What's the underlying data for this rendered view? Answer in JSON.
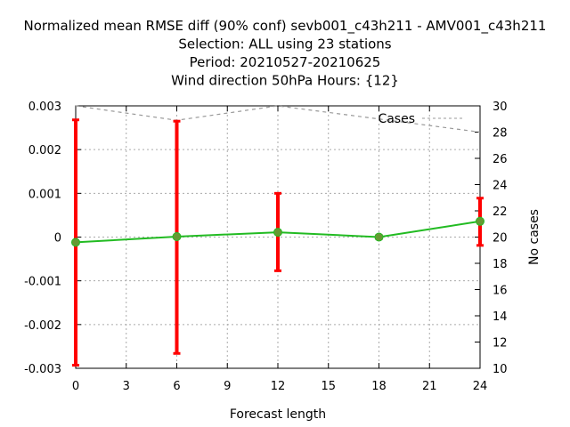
{
  "chart_data": {
    "type": "line",
    "title_lines": [
      "Normalized mean RMSE diff (90% conf) sevb001_c43h211 - AMV001_c43h211",
      "Selection: ALL using    23 stations",
      "Period: 20210527-20210625",
      "Wind direction 50hPa   Hours: {12}"
    ],
    "xlabel": "Forecast length",
    "ylabel": "",
    "y2label": "No cases",
    "xlim": [
      0,
      24
    ],
    "ylim": [
      -0.003,
      0.003
    ],
    "y2lim": [
      10,
      30
    ],
    "x_ticks": [
      "0",
      "3",
      "6",
      "9",
      "12",
      "15",
      "18",
      "21",
      "24"
    ],
    "y_ticks": [
      "0.003",
      "0.002",
      "0.001",
      "0",
      "-0.001",
      "-0.002",
      "-0.003"
    ],
    "y2_ticks": [
      "30",
      "28",
      "26",
      "24",
      "22",
      "20",
      "18",
      "16",
      "14",
      "12",
      "10"
    ],
    "grid": true,
    "legend_position": "top-right",
    "series": [
      {
        "kind": "line-with-errorbars",
        "color": "#22bb22",
        "error_color": "#ff0000",
        "marker_color": "#669933",
        "x": [
          0,
          6,
          12,
          18,
          24
        ],
        "y": [
          -0.00012,
          1e-05,
          0.00011,
          0.0,
          0.00036
        ],
        "err_low": [
          -0.00293,
          -0.00266,
          -0.00077,
          -4e-05,
          -0.00019
        ],
        "err_high": [
          0.00268,
          0.00265,
          0.001,
          4e-05,
          0.00089
        ]
      },
      {
        "name": "Cases",
        "kind": "dashed-line",
        "axis": "y2",
        "color": "#999999",
        "x": [
          0,
          6,
          12,
          18,
          24
        ],
        "y": [
          30,
          28.9,
          30,
          29,
          28
        ]
      }
    ]
  }
}
